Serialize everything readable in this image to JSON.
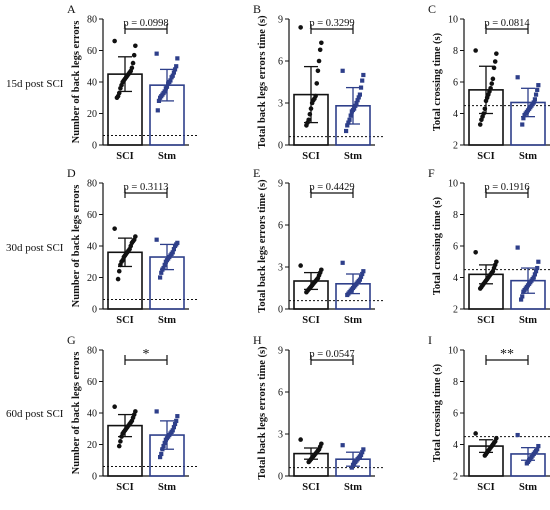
{
  "row_labels": [
    "15d post SCI",
    "30d post SCI",
    "60d post SCI"
  ],
  "colors": {
    "sci": "#111111",
    "stm": "#2e3f8a",
    "dotted_line": "#111111"
  },
  "chart_data": [
    {
      "type": "bar",
      "panel": "A",
      "categories": [
        "SCI",
        "Stm"
      ],
      "ylabel": "Number of back legs errors",
      "ylim": [
        0,
        80
      ],
      "yticks": [
        0,
        20,
        40,
        60,
        80
      ],
      "means": [
        45,
        38
      ],
      "sd": [
        11,
        10
      ],
      "sig": "p = 0.0998",
      "ref_line": 6,
      "points": [
        [
          66,
          63,
          57,
          52,
          49,
          47,
          46,
          45,
          44,
          43,
          42,
          41,
          40,
          38,
          36,
          33,
          31,
          30
        ],
        [
          58,
          55,
          50,
          48,
          46,
          44,
          43,
          41,
          40,
          39,
          37,
          36,
          34,
          33,
          32,
          31,
          30,
          28,
          22
        ]
      ]
    },
    {
      "type": "bar",
      "panel": "B",
      "categories": [
        "SCI",
        "Stm"
      ],
      "ylabel": "Total back legs errors time (s)",
      "ylim": [
        0,
        9
      ],
      "yticks": [
        0,
        3,
        6,
        9
      ],
      "means": [
        3.6,
        2.8
      ],
      "sd": [
        2.0,
        1.3
      ],
      "sig": "p = 0.3299",
      "ref_line": 0.6,
      "points": [
        [
          8.4,
          7.3,
          6.8,
          6.0,
          5.3,
          4.4,
          3.5,
          3.3,
          3.2,
          3.0,
          2.6,
          2.2,
          1.8,
          1.6,
          1.4
        ],
        [
          5.3,
          5.0,
          4.6,
          4.1,
          3.6,
          3.4,
          3.2,
          3.0,
          2.8,
          2.6,
          2.5,
          2.4,
          2.1,
          1.8,
          1.6,
          1.4,
          1.0
        ]
      ]
    },
    {
      "type": "bar",
      "panel": "C",
      "categories": [
        "SCI",
        "Stm"
      ],
      "ylabel": "Total crossing time (s)",
      "ylim": [
        2,
        10
      ],
      "yticks": [
        2,
        4,
        6,
        8,
        10
      ],
      "means": [
        5.5,
        4.7
      ],
      "sd": [
        1.5,
        0.9
      ],
      "sig": "p = 0.0814",
      "ref_line": 4.5,
      "points": [
        [
          8.0,
          7.8,
          7.3,
          6.9,
          6.2,
          5.9,
          5.6,
          5.4,
          5.2,
          5.0,
          4.8,
          4.3,
          4.0,
          3.8,
          3.6,
          3.3
        ],
        [
          6.3,
          5.8,
          5.5,
          5.2,
          4.9,
          4.7,
          4.6,
          4.5,
          4.4,
          4.3,
          4.2,
          4.1,
          4.0,
          3.9,
          3.7,
          3.3
        ]
      ]
    },
    {
      "type": "bar",
      "panel": "D",
      "categories": [
        "SCI",
        "Stm"
      ],
      "ylabel": "Number of back legs errors",
      "ylim": [
        0,
        80
      ],
      "yticks": [
        0,
        20,
        40,
        60,
        80
      ],
      "means": [
        36,
        33
      ],
      "sd": [
        9,
        8
      ],
      "sig": "p = 0.3113",
      "ref_line": 6,
      "points": [
        [
          51,
          46,
          44,
          43,
          42,
          40,
          38,
          37,
          36,
          35,
          34,
          33,
          31,
          30,
          28,
          24,
          19
        ],
        [
          44,
          42,
          41,
          40,
          38,
          36,
          35,
          34,
          33,
          32,
          31,
          30,
          28,
          26,
          25,
          23,
          20
        ]
      ]
    },
    {
      "type": "bar",
      "panel": "E",
      "categories": [
        "SCI",
        "Stm"
      ],
      "ylabel": "Total back legs errors time (s)",
      "ylim": [
        0,
        9
      ],
      "yticks": [
        0,
        3,
        6,
        9
      ],
      "means": [
        2.0,
        1.8
      ],
      "sd": [
        0.6,
        0.7
      ],
      "sig": "p = 0.4429",
      "ref_line": 0.6,
      "points": [
        [
          3.1,
          2.8,
          2.6,
          2.4,
          2.2,
          2.1,
          2.0,
          1.9,
          1.8,
          1.7,
          1.6,
          1.5,
          1.4,
          1.3,
          1.2
        ],
        [
          3.3,
          2.7,
          2.5,
          2.3,
          2.1,
          2.0,
          1.9,
          1.8,
          1.7,
          1.6,
          1.5,
          1.4,
          1.3,
          1.2,
          1.1,
          1.0
        ]
      ]
    },
    {
      "type": "bar",
      "panel": "F",
      "categories": [
        "SCI",
        "Stm"
      ],
      "ylabel": "Total crossing time (s)",
      "ylim": [
        2,
        10
      ],
      "yticks": [
        2,
        4,
        6,
        8,
        10
      ],
      "means": [
        4.2,
        3.8
      ],
      "sd": [
        0.6,
        0.8
      ],
      "sig": "p = 0.1916",
      "ref_line": 4.5,
      "points": [
        [
          5.6,
          5.0,
          4.8,
          4.6,
          4.4,
          4.3,
          4.2,
          4.1,
          4.0,
          3.9,
          3.8,
          3.7,
          3.6,
          3.5,
          3.4,
          3.3
        ],
        [
          5.9,
          5.0,
          4.6,
          4.4,
          4.2,
          4.0,
          3.9,
          3.8,
          3.7,
          3.6,
          3.5,
          3.4,
          3.3,
          3.2,
          3.1,
          2.8,
          2.6
        ]
      ]
    },
    {
      "type": "bar",
      "panel": "G",
      "categories": [
        "SCI",
        "Stm"
      ],
      "ylabel": "Number of back legs errors",
      "ylim": [
        0,
        80
      ],
      "yticks": [
        0,
        20,
        40,
        60,
        80
      ],
      "means": [
        32,
        26
      ],
      "sd": [
        7,
        9
      ],
      "sig": "*",
      "ref_line": 6,
      "points": [
        [
          44,
          41,
          39,
          37,
          35,
          34,
          33,
          32,
          31,
          30,
          29,
          28,
          27,
          25,
          22,
          19
        ],
        [
          41,
          38,
          35,
          33,
          31,
          29,
          28,
          27,
          26,
          25,
          24,
          23,
          21,
          19,
          17,
          14,
          12
        ]
      ]
    },
    {
      "type": "bar",
      "panel": "H",
      "categories": [
        "SCI",
        "Stm"
      ],
      "ylabel": "Total back legs errors time (s)",
      "ylim": [
        0,
        9
      ],
      "yticks": [
        0,
        3,
        6,
        9
      ],
      "means": [
        1.6,
        1.2
      ],
      "sd": [
        0.4,
        0.5
      ],
      "sig": "p = 0.0547",
      "ref_line": 0.6,
      "points": [
        [
          2.6,
          2.3,
          2.1,
          1.9,
          1.8,
          1.7,
          1.6,
          1.5,
          1.4,
          1.3,
          1.2,
          1.1,
          1.0
        ],
        [
          2.2,
          1.9,
          1.7,
          1.5,
          1.4,
          1.3,
          1.2,
          1.1,
          1.0,
          0.9,
          0.8,
          0.6
        ]
      ]
    },
    {
      "type": "bar",
      "panel": "I",
      "categories": [
        "SCI",
        "Stm"
      ],
      "ylabel": "Total crossing time (s)",
      "ylim": [
        2,
        10
      ],
      "yticks": [
        2,
        4,
        6,
        8,
        10
      ],
      "means": [
        3.9,
        3.4
      ],
      "sd": [
        0.4,
        0.4
      ],
      "sig": "**",
      "ref_line": 4.5,
      "points": [
        [
          4.7,
          4.4,
          4.2,
          4.1,
          4.0,
          3.9,
          3.8,
          3.7,
          3.6,
          3.5,
          3.4,
          3.3
        ],
        [
          4.6,
          3.9,
          3.7,
          3.6,
          3.5,
          3.4,
          3.3,
          3.2,
          3.1,
          3.0,
          2.9,
          2.8
        ]
      ]
    }
  ]
}
